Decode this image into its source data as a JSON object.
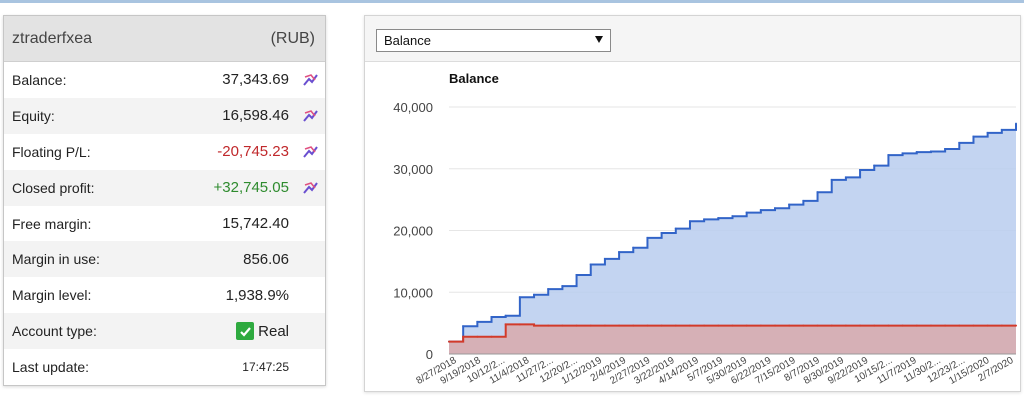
{
  "account": {
    "name": "ztraderfxea",
    "currency": "(RUB)",
    "rows": [
      {
        "label": "Balance:",
        "value": "37,343.69"
      },
      {
        "label": "Equity:",
        "value": "16,598.46"
      },
      {
        "label": "Floating P/L:",
        "value": "-20,745.23"
      },
      {
        "label": "Closed profit:",
        "value": "+32,745.05"
      },
      {
        "label": "Free margin:",
        "value": "15,742.40"
      },
      {
        "label": "Margin in use:",
        "value": "856.06"
      },
      {
        "label": "Margin level:",
        "value": "1,938.9%"
      },
      {
        "label": "Account type:",
        "value": "Real"
      },
      {
        "label": "Last update:",
        "value": "17:47:25"
      }
    ]
  },
  "chart": {
    "dropdown_value": "Balance",
    "title": "Balance",
    "colors": {
      "balance_line": "#3264c8",
      "balance_fill": "#b9cdee",
      "margin_line": "#d23a2a",
      "margin_fill": "#d9a9ab"
    }
  },
  "chart_data": {
    "type": "area",
    "title": "Balance",
    "ylim": [
      0,
      40000
    ],
    "yticks": [
      "40,000",
      "30,000",
      "20,000",
      "10,000",
      "0"
    ],
    "xticks": [
      "8/27/2018",
      "9/19/2018",
      "10/12/2...",
      "11/4/2018",
      "11/27/2...",
      "12/20/2...",
      "1/12/2019",
      "2/4/2019",
      "2/27/2019",
      "3/22/2019",
      "4/14/2019",
      "5/7/2019",
      "5/30/2019",
      "6/22/2019",
      "7/15/2019",
      "8/7/2019",
      "8/30/2019",
      "9/22/2019",
      "10/15/2...",
      "11/7/2019",
      "11/30/2...",
      "12/23/2...",
      "1/15/2020",
      "2/7/2020"
    ],
    "series": [
      {
        "name": "",
        "values": [
          2000,
          4500,
          5200,
          6000,
          6200,
          9200,
          9600,
          10500,
          11000,
          12800,
          14500,
          15400,
          16500,
          17200,
          18800,
          19600,
          20300,
          21500,
          21800,
          22000,
          22300,
          22900,
          23300,
          23600,
          24200,
          24800,
          26200,
          28200,
          28600,
          29800,
          30500,
          32200,
          32500,
          32700,
          32800,
          33200,
          34200,
          35200,
          35800,
          36300,
          37300
        ]
      },
      {
        "name": "",
        "values": [
          2000,
          2800,
          2800,
          2800,
          4800,
          4800,
          4600,
          4600,
          4600,
          4600,
          4600,
          4600,
          4600,
          4600,
          4600,
          4600,
          4600,
          4600,
          4600,
          4600,
          4600,
          4600,
          4600,
          4600,
          4600,
          4600,
          4600,
          4600,
          4600,
          4600,
          4600,
          4600,
          4600,
          4600,
          4600,
          4600,
          4600,
          4600,
          4600,
          4600,
          4600
        ]
      }
    ]
  }
}
